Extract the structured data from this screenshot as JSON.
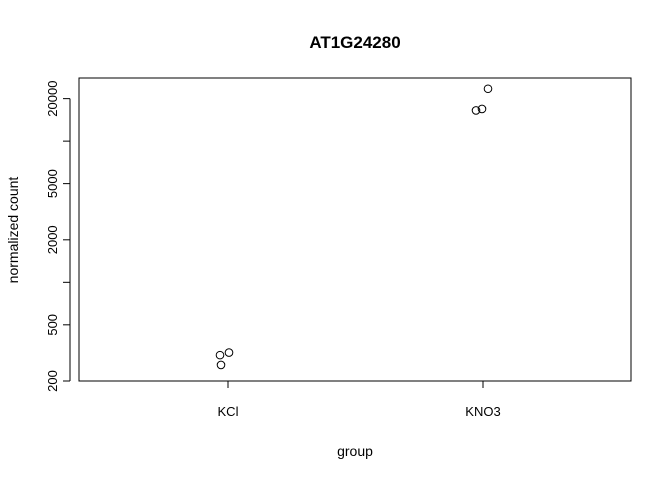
{
  "chart_data": {
    "type": "scatter",
    "title": "AT1G24280",
    "xlabel": "group",
    "ylabel": "normalized count",
    "categories": [
      "KCl",
      "KNO3"
    ],
    "y_scale": "log",
    "ylim": [
      200,
      28000
    ],
    "yticks": [
      200,
      500,
      1000,
      2000,
      5000,
      10000,
      20000
    ],
    "ytick_labels": [
      "200",
      "500",
      "",
      "2000",
      "5000",
      "",
      "20000"
    ],
    "grid": false,
    "points": [
      {
        "group": "KCl",
        "y": 260
      },
      {
        "group": "KCl",
        "y": 305
      },
      {
        "group": "KCl",
        "y": 318
      },
      {
        "group": "KNO3",
        "y": 16500
      },
      {
        "group": "KNO3",
        "y": 16900
      },
      {
        "group": "KNO3",
        "y": 23500
      }
    ]
  }
}
